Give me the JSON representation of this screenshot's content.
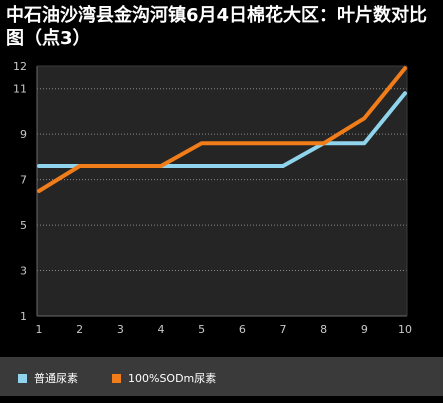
{
  "title": "中石油沙湾县金沟河镇6月4日棉花大区：叶片数对比图（点3）",
  "colors": {
    "background": "#000000",
    "plot_background": "#252525",
    "grid": "#8a8a8a",
    "axis_text": "#c8c8c8",
    "legend_background": "#3a3a3a"
  },
  "chart_data": {
    "type": "line",
    "title": "中石油沙湾县金沟河镇6月4日棉花大区：叶片数对比图（点3）",
    "xlabel": "",
    "ylabel": "",
    "x": [
      1,
      2,
      3,
      4,
      5,
      6,
      7,
      8,
      9,
      10
    ],
    "ylim": [
      1,
      12
    ],
    "yticks": [
      1,
      3,
      5,
      7,
      9,
      11,
      12
    ],
    "grid": true,
    "legend_placement": "bottom",
    "series": [
      {
        "name": "普通尿素",
        "color": "#8fd4ec",
        "values": [
          7.6,
          7.6,
          7.6,
          7.6,
          7.6,
          7.6,
          7.6,
          8.6,
          8.6,
          10.8
        ]
      },
      {
        "name": "100%SODm尿素",
        "color": "#f07d1a",
        "values": [
          6.5,
          7.6,
          7.6,
          7.6,
          8.6,
          8.6,
          8.6,
          8.6,
          9.7,
          11.9
        ]
      }
    ]
  }
}
